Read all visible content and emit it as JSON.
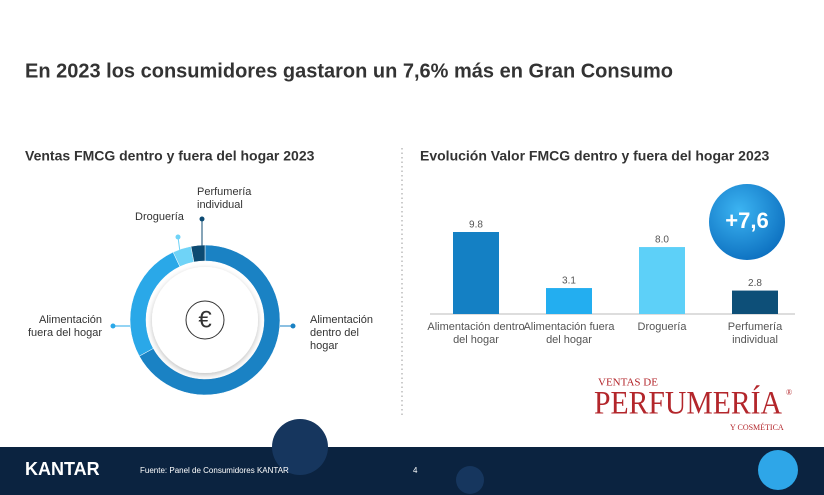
{
  "title": "En 2023 los consumidores gastaron un 7,6% más en Gran Consumo",
  "chart_data": [
    {
      "type": "donut",
      "title": "Ventas FMCG dentro y fuera del hogar 2023",
      "categories": [
        "Alimentación dentro del hogar",
        "Alimentación fuera del hogar",
        "Droguería",
        "Perfumería individual"
      ],
      "values": [
        67,
        26,
        4,
        3
      ],
      "colors": [
        "#1a82c4",
        "#2aa8e8",
        "#6fd3f7",
        "#0c4a72"
      ],
      "center_label": "€"
    },
    {
      "type": "bar",
      "title": "Evolución Valor FMCG dentro y fuera del hogar 2023",
      "categories": [
        "Alimentación dentro del hogar",
        "Alimentación fuera del hogar",
        "Droguería",
        "Perfumería individual"
      ],
      "values": [
        9.8,
        3.1,
        8.0,
        2.8
      ],
      "value_labels": [
        "9.8",
        "3.1",
        "8.0",
        "2.8"
      ],
      "colors": [
        "#1480c4",
        "#23aef0",
        "#5dd0f8",
        "#0d4f78"
      ]
    }
  ],
  "badge": "+7,6",
  "logo": {
    "top": "VENTAS DE",
    "main": "PERFUMERÍA",
    "bottom": "Y COSMÉTICA",
    "mark": "®"
  },
  "footer": {
    "brand": "KANTAR",
    "source": "Fuente: Panel de Consumidores KANTAR",
    "page": "4"
  }
}
